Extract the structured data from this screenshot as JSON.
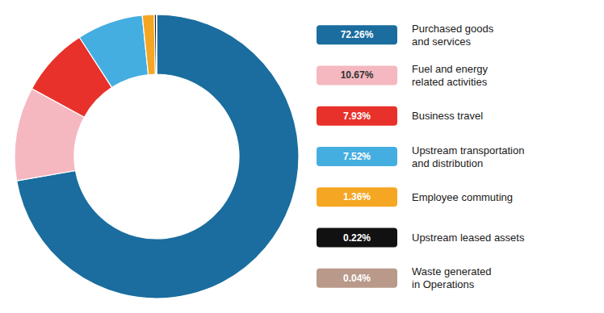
{
  "chart_data": {
    "type": "pie",
    "categories": [
      "Purchased goods\nand services",
      "Fuel and energy\nrelated activities",
      "Business travel",
      "Upstream transportation\nand distribution",
      "Employee commuting",
      "Upstream leased assets",
      "Waste generated\nin Operations"
    ],
    "values": [
      72.26,
      10.67,
      7.93,
      7.52,
      1.36,
      0.22,
      0.04
    ],
    "value_labels": [
      "72.26%",
      "10.67%",
      "7.93%",
      "7.52%",
      "1.36%",
      "0.22%",
      "0.04%"
    ],
    "colors": [
      "#1a6d9e",
      "#f5b8c0",
      "#e8312a",
      "#45aee0",
      "#f5a623",
      "#111111",
      "#b8998a"
    ],
    "legend": "right"
  }
}
